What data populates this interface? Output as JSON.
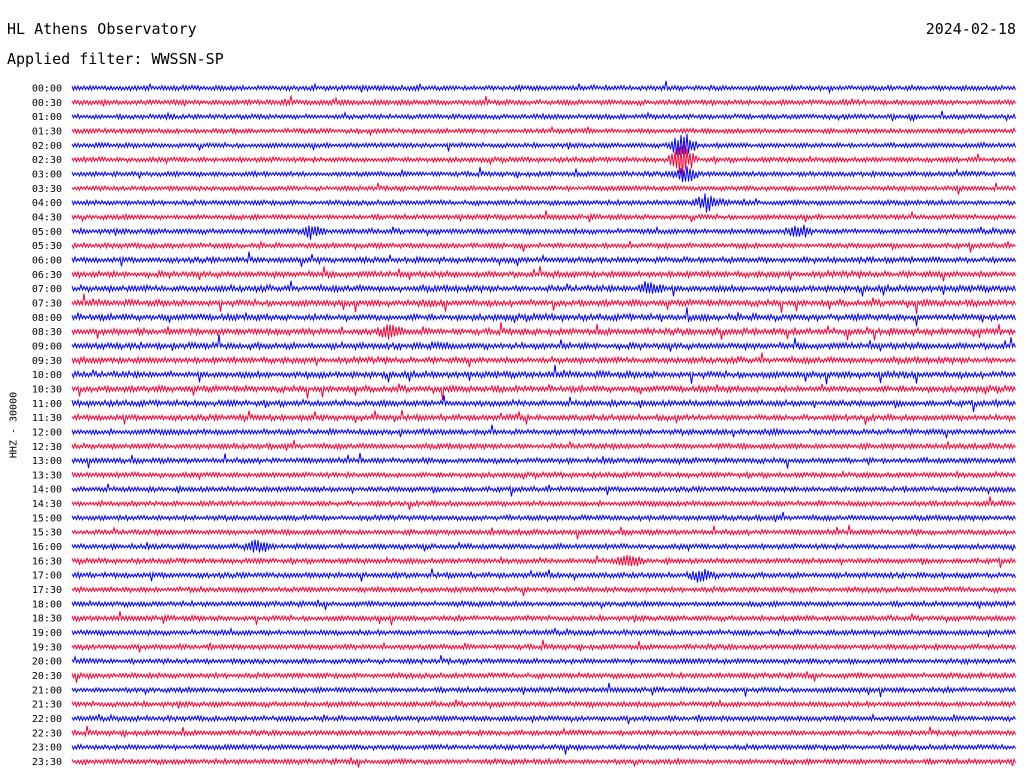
{
  "header": {
    "station": "HL Athens Observatory",
    "date": "2024-02-18",
    "filter": "Applied filter: WWSSN-SP"
  },
  "channel_label": "HHZ - 30000",
  "chart_data": {
    "type": "line",
    "title": "HL Athens Observatory",
    "ylabel": "HHZ - 30000",
    "row_labels": [
      "00:00",
      "00:30",
      "01:00",
      "01:30",
      "02:00",
      "02:30",
      "03:00",
      "03:30",
      "04:00",
      "04:30",
      "05:00",
      "05:30",
      "06:00",
      "06:30",
      "07:00",
      "07:30",
      "08:00",
      "08:30",
      "09:00",
      "09:30",
      "10:00",
      "10:30",
      "11:00",
      "11:30",
      "12:00",
      "12:30",
      "13:00",
      "13:30",
      "14:00",
      "14:30",
      "15:00",
      "15:30",
      "16:00",
      "16:30",
      "17:00",
      "17:30",
      "18:00",
      "18:30",
      "19:00",
      "19:30",
      "20:00",
      "20:30",
      "21:00",
      "21:30",
      "22:00",
      "22:30",
      "23:00",
      "23:30"
    ],
    "colors": [
      "#0000ff",
      "#ff0033"
    ],
    "row_activity": [
      0.25,
      0.25,
      0.2,
      0.2,
      0.2,
      0.25,
      0.25,
      0.2,
      0.25,
      0.25,
      0.3,
      0.25,
      0.4,
      0.55,
      0.6,
      0.55,
      0.6,
      0.6,
      0.6,
      0.55,
      0.6,
      0.55,
      0.5,
      0.45,
      0.4,
      0.35,
      0.35,
      0.3,
      0.3,
      0.3,
      0.3,
      0.3,
      0.3,
      0.3,
      0.35,
      0.3,
      0.3,
      0.3,
      0.3,
      0.3,
      0.3,
      0.3,
      0.3,
      0.3,
      0.3,
      0.3,
      0.3,
      0.3
    ],
    "events": [
      {
        "row": 4,
        "time_min": 19.4,
        "amplitude": 14
      },
      {
        "row": 5,
        "time_min": 19.4,
        "amplitude": 16
      },
      {
        "row": 6,
        "time_min": 19.5,
        "amplitude": 8
      },
      {
        "row": 8,
        "time_min": 20.2,
        "amplitude": 9
      },
      {
        "row": 10,
        "time_min": 7.6,
        "amplitude": 6
      },
      {
        "row": 10,
        "time_min": 23.1,
        "amplitude": 6
      },
      {
        "row": 14,
        "time_min": 18.4,
        "amplitude": 7
      },
      {
        "row": 17,
        "time_min": 10.1,
        "amplitude": 7
      },
      {
        "row": 32,
        "time_min": 5.9,
        "amplitude": 7
      },
      {
        "row": 33,
        "time_min": 17.7,
        "amplitude": 6
      },
      {
        "row": 34,
        "time_min": 20.0,
        "amplitude": 6
      }
    ],
    "xlim_min": [
      0,
      30
    ]
  }
}
